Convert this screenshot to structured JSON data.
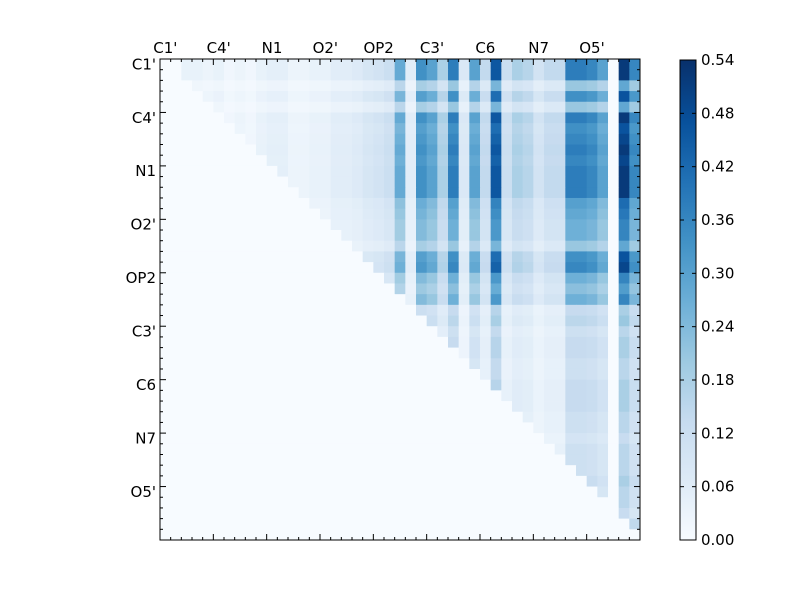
{
  "chart_data": {
    "type": "heatmap",
    "title": "",
    "xlabel": "",
    "ylabel": "",
    "x_tick_labels": [
      "C1'",
      "C4'",
      "N1",
      "O2'",
      "OP2",
      "C3'",
      "C6",
      "N7",
      "O5'"
    ],
    "y_tick_labels": [
      "C1'",
      "C4'",
      "N1",
      "O2'",
      "OP2",
      "C3'",
      "C6",
      "N7",
      "O5'"
    ],
    "tick_every": 5,
    "rows": 45,
    "cols": 45,
    "colormap": "Blues",
    "colors": {
      "low": "#f7fbff",
      "high": "#08306b"
    },
    "colorbar": {
      "min": 0.0,
      "max": 0.54,
      "tick_labels": [
        "0.00",
        "0.06",
        "0.12",
        "0.18",
        "0.24",
        "0.30",
        "0.36",
        "0.42",
        "0.48",
        "0.54"
      ]
    },
    "lower_triangle_value": 0.0,
    "column_weights": [
      0.0,
      0.0,
      0.04,
      0.04,
      0.03,
      0.04,
      0.02,
      0.03,
      0.02,
      0.04,
      0.05,
      0.05,
      0.03,
      0.03,
      0.04,
      0.04,
      0.06,
      0.06,
      0.07,
      0.09,
      0.1,
      0.12,
      0.28,
      0.06,
      0.34,
      0.3,
      0.18,
      0.38,
      0.08,
      0.3,
      0.14,
      0.46,
      0.12,
      0.18,
      0.16,
      0.1,
      0.14,
      0.14,
      0.38,
      0.38,
      0.36,
      0.3,
      0.0,
      0.52,
      0.36
    ],
    "row_weights": [
      1.0,
      1.0,
      0.55,
      0.9,
      0.55,
      1.0,
      0.9,
      0.95,
      1.0,
      0.95,
      1.0,
      1.0,
      1.0,
      0.8,
      0.75,
      0.7,
      0.7,
      0.55,
      0.9,
      0.95,
      0.7,
      0.6,
      0.7,
      0.35,
      0.4,
      0.3,
      0.35,
      0.35,
      0.3,
      0.3,
      0.35,
      0.35,
      0.35,
      0.3,
      0.3,
      0.25,
      0.3,
      0.3,
      0.3,
      0.35,
      0.3,
      0.3,
      0.25,
      0.4,
      0.3
    ]
  }
}
